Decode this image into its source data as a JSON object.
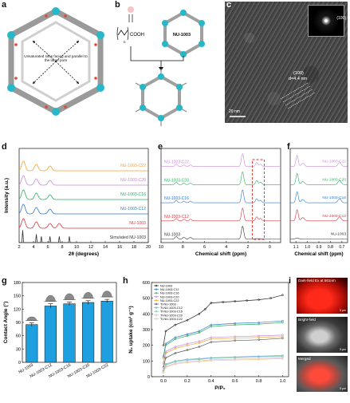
{
  "panels": {
    "a": {
      "letter": "a",
      "caption": "Unsaturated sites facing and parallel to the large pore"
    },
    "b": {
      "letter": "b",
      "chem": "COOH",
      "chem_sub": "n",
      "framework": "NU-1003"
    },
    "c": {
      "letter": "c",
      "fft_label": "(100)",
      "lattice_label": "(100)",
      "spacing_label": "d=4.4 nm",
      "scale_bar": "20 nm"
    },
    "d": {
      "letter": "d",
      "ylabel": "Intensity (a.u.)",
      "xlabel": "2θ (degrees)",
      "legend": [
        "NU-1003-C22",
        "NU-1003-C20",
        "NU-1003-C16",
        "NU-1003-C12",
        "NU-1003",
        "Simulated NU-1003"
      ],
      "xticks": [
        "2",
        "4",
        "6",
        "8",
        "10",
        "12",
        "14",
        "16",
        "18",
        "20"
      ]
    },
    "e": {
      "letter": "e",
      "xlabel": "Chemical shift (ppm)",
      "labels": [
        "NU-1003-C22",
        "NU-1003-C20",
        "NU-1003-C16",
        "NU-1003-C12",
        "NU-1003"
      ],
      "xticks": [
        "10",
        "8",
        "6",
        "4",
        "2",
        "0"
      ]
    },
    "f": {
      "letter": "f",
      "xlabel": "Chemical shift (ppm)",
      "labels": [
        "NU-1003-C22",
        "NU-1003-C20",
        "NU-1003-C16",
        "NU-1003-C12",
        "NU-1003"
      ],
      "xticks": [
        "1.1",
        "1.0",
        "0.9",
        "0.8",
        "0.7"
      ]
    },
    "g": {
      "letter": "g",
      "ylabel": "Contact Angle (°)"
    },
    "h": {
      "letter": "h",
      "ylabel": "N₂ uptake  (cm³ g⁻¹)",
      "xlabel": "P/P₀",
      "legend": [
        "NU-1003",
        "NU-1003-C12",
        "NU-1003-C16",
        "NU-1003-C20",
        "NU-1003-C22",
        "Tl-NU-1003",
        "Tl-NU-1003-C12",
        "Tl-NU-1003-C16",
        "Tl-NU-1003-C20",
        "Tl-NU-1003-C22"
      ],
      "xticks": [
        "0.0",
        "0.2",
        "0.4",
        "0.6",
        "0.8",
        "1.0"
      ],
      "yticks": [
        "0",
        "100",
        "200",
        "300",
        "400",
        "500",
        "600"
      ]
    },
    "i": {
      "letter": "i",
      "titles": [
        "Dark-field Ex at 561nm",
        "Bright-field",
        "Merged"
      ],
      "scale": "5 μm"
    }
  },
  "chart_data": [
    {
      "type": "bar",
      "title": "",
      "ylabel": "Contact Angle (°)",
      "categories": [
        "NU-1003",
        "NU-1003-C12",
        "NU-1003-C16",
        "NU-1003-C20",
        "NU-1003-C22"
      ],
      "values": [
        85,
        127,
        132,
        135,
        138
      ],
      "errors": [
        4,
        5,
        4,
        4,
        4
      ],
      "ylim": [
        0,
        180
      ],
      "yticks": [
        0,
        30,
        60,
        90,
        120,
        150,
        180
      ],
      "color": "#1e9fe0"
    },
    {
      "type": "line",
      "xlabel": "2θ (degrees)",
      "ylabel": "Intensity (a.u.)",
      "xlim": [
        2,
        20
      ],
      "series": [
        {
          "name": "NU-1003-C22",
          "color": "#f0a330",
          "peaks": [
            2.6,
            4.4,
            6.3
          ]
        },
        {
          "name": "NU-1003-C20",
          "color": "#c98bd8",
          "peaks": [
            2.6,
            4.4,
            6.3
          ]
        },
        {
          "name": "NU-1003-C16",
          "color": "#2fae63",
          "peaks": [
            2.6,
            4.4,
            6.3
          ]
        },
        {
          "name": "NU-1003-C12",
          "color": "#2f79c9",
          "peaks": [
            2.6,
            4.4,
            6.3
          ]
        },
        {
          "name": "NU-1003",
          "color": "#d9363e",
          "peaks": [
            2.6,
            4.4,
            6.3,
            7.6
          ]
        },
        {
          "name": "Simulated NU-1003",
          "color": "#333333",
          "peaks": [
            2.5,
            4.4,
            5.1,
            6.3,
            7.6,
            9.0
          ]
        }
      ]
    },
    {
      "type": "line",
      "xlabel": "P/P₀",
      "ylabel": "N₂ uptake (cm³ g⁻¹)",
      "xlim": [
        -0.1,
        1.05
      ],
      "ylim": [
        0,
        600
      ],
      "series": [
        {
          "name": "NU-1003",
          "color": "#222222",
          "x": [
            0,
            0.02,
            0.1,
            0.2,
            0.3,
            0.35,
            0.4,
            0.5,
            0.6,
            0.7,
            0.8,
            0.9,
            1.0
          ],
          "y": [
            200,
            290,
            330,
            360,
            400,
            430,
            470,
            475,
            480,
            485,
            490,
            500,
            520
          ]
        },
        {
          "name": "NU-1003-C12",
          "color": "#2f79c9",
          "x": [
            0,
            0.02,
            0.1,
            0.2,
            0.3,
            0.4,
            0.6,
            0.8,
            1.0
          ],
          "y": [
            130,
            210,
            250,
            270,
            290,
            330,
            340,
            345,
            355
          ]
        },
        {
          "name": "NU-1003-C16",
          "color": "#2fae63",
          "x": [
            0,
            0.02,
            0.1,
            0.2,
            0.3,
            0.4,
            0.6,
            0.8,
            1.0
          ],
          "y": [
            120,
            200,
            240,
            260,
            280,
            320,
            330,
            335,
            345
          ]
        },
        {
          "name": "NU-1003-C20",
          "color": "#c98bd8",
          "x": [
            0,
            0.02,
            0.1,
            0.2,
            0.3,
            0.4,
            0.6,
            0.8,
            1.0
          ],
          "y": [
            90,
            160,
            190,
            210,
            225,
            250,
            255,
            260,
            265
          ]
        },
        {
          "name": "NU-1003-C22",
          "color": "#f0a330",
          "x": [
            0,
            0.02,
            0.1,
            0.2,
            0.3,
            0.4,
            0.6,
            0.8,
            1.0
          ],
          "y": [
            80,
            150,
            180,
            200,
            215,
            240,
            245,
            250,
            255
          ]
        },
        {
          "name": "Tl-NU-1003",
          "color": "#555555",
          "x": [
            0,
            0.02,
            0.1,
            0.2,
            0.3,
            0.4,
            0.6,
            0.8,
            1.0
          ],
          "y": [
            60,
            120,
            150,
            170,
            190,
            220,
            230,
            235,
            245
          ]
        },
        {
          "name": "Tl-NU-1003-C12",
          "color": "#6ea8e8",
          "x": [
            0,
            0.02,
            0.1,
            0.2,
            0.3,
            0.4,
            0.6,
            0.8,
            1.0
          ],
          "y": [
            40,
            80,
            100,
            110,
            115,
            120,
            125,
            130,
            135
          ]
        },
        {
          "name": "Tl-NU-1003-C16",
          "color": "#6fd09a",
          "x": [
            0,
            0.02,
            0.1,
            0.2,
            0.3,
            0.4,
            0.6,
            0.8,
            1.0
          ],
          "y": [
            35,
            75,
            95,
            105,
            110,
            118,
            122,
            126,
            130
          ]
        },
        {
          "name": "Tl-NU-1003-C20",
          "color": "#d7b6e3",
          "x": [
            0,
            0.02,
            0.1,
            0.2,
            0.3,
            0.4,
            0.6,
            0.8,
            1.0
          ],
          "y": [
            30,
            65,
            85,
            95,
            100,
            108,
            112,
            116,
            120
          ]
        },
        {
          "name": "Tl-NU-1003-C22",
          "color": "#f3c88a",
          "x": [
            0,
            0.02,
            0.1,
            0.2,
            0.3,
            0.4,
            0.6,
            0.8,
            1.0
          ],
          "y": [
            25,
            60,
            80,
            90,
            95,
            102,
            106,
            110,
            115
          ]
        }
      ]
    }
  ]
}
